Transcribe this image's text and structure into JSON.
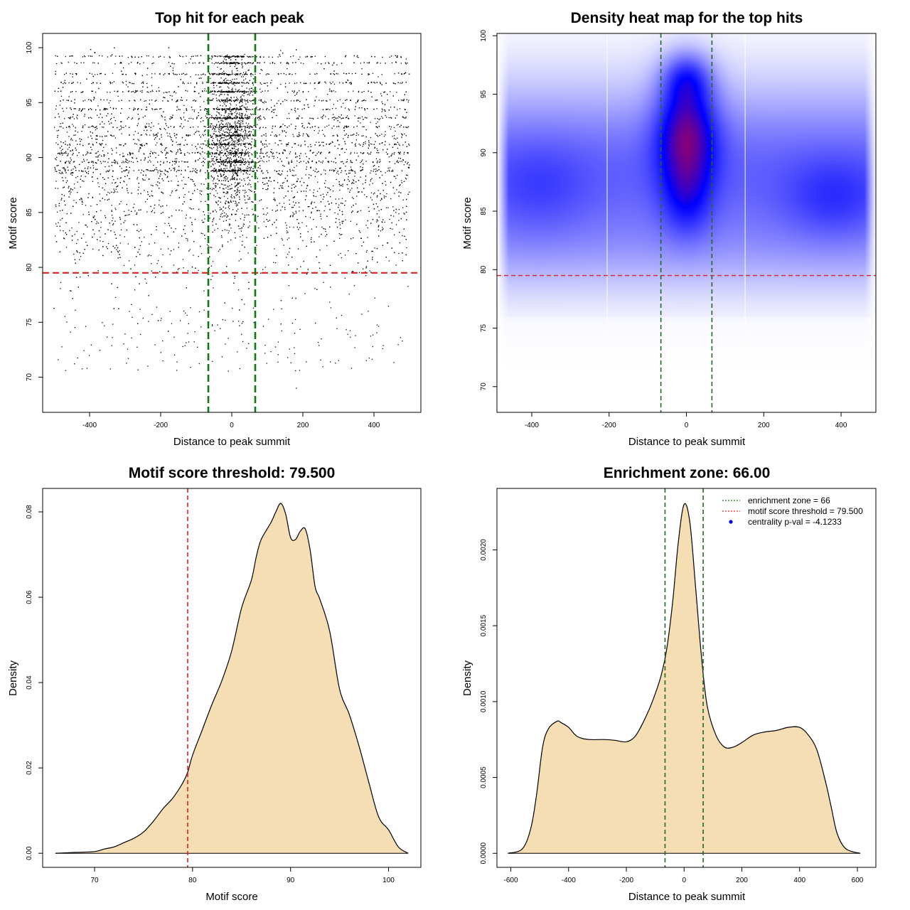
{
  "chart_data": [
    {
      "id": "scatter",
      "type": "scatter",
      "title": "Top hit for each peak",
      "xlabel": "Distance to peak summit",
      "ylabel": "Motif score",
      "xlim": [
        -532,
        532
      ],
      "ylim": [
        66.8,
        101.3
      ],
      "xticks": [
        -400,
        -200,
        0,
        200,
        400
      ],
      "yticks": [
        70,
        75,
        80,
        85,
        90,
        95,
        100
      ],
      "hlines": [
        79.5
      ],
      "vlines": [
        -66,
        66
      ],
      "points_description": "approx. 7000 top hits; distance roughly uniform on [-500,500], motif score mostly 75-100 with dense cluster near distance 0 and score 88-100",
      "point_color": "#000000",
      "threshold_color": "#dd2222",
      "zone_color": "#117711"
    },
    {
      "id": "heatmap",
      "type": "heatmap",
      "title": "Density heat map for the top hits",
      "xlabel": "Distance to peak summit",
      "ylabel": "Motif score",
      "xlim": [
        -490,
        490
      ],
      "ylim": [
        67.8,
        100.2
      ],
      "xticks": [
        -400,
        -200,
        0,
        200,
        400
      ],
      "yticks": [
        70,
        75,
        80,
        85,
        90,
        95,
        100
      ],
      "hlines": [
        79.5
      ],
      "vlines": [
        -66,
        66
      ],
      "peak": {
        "x": 0,
        "y": 91.5
      },
      "colors": {
        "low": "#ffffff",
        "mid": "#0000ff",
        "high": "#ff0000"
      }
    },
    {
      "id": "score-density",
      "type": "area",
      "title": "Motif score threshold: 79.500",
      "xlabel": "Motif score",
      "ylabel": "Density",
      "xlim": [
        64.7,
        103.3
      ],
      "ylim": [
        -0.0033,
        0.0855
      ],
      "xticks": [
        70,
        80,
        90,
        100
      ],
      "yticks": [
        0.0,
        0.02,
        0.04,
        0.06,
        0.08
      ],
      "ytick_labels": [
        "0.00",
        "0.02",
        "0.04",
        "0.06",
        "0.08"
      ],
      "vlines": [
        79.5
      ],
      "fill": "#f5deb3",
      "x": [
        66,
        68,
        70,
        71,
        72,
        73,
        74,
        75,
        76,
        77,
        78,
        79,
        79.5,
        80,
        81,
        82,
        83,
        84,
        85,
        86,
        86.5,
        87,
        88,
        88.5,
        89,
        89.5,
        90,
        90.5,
        91,
        91.5,
        92,
        92.5,
        93,
        94,
        95,
        96,
        97,
        98,
        99,
        100,
        101,
        102
      ],
      "y": [
        0.0,
        0.0002,
        0.0004,
        0.001,
        0.0015,
        0.0025,
        0.0035,
        0.005,
        0.0075,
        0.0105,
        0.013,
        0.0165,
        0.019,
        0.023,
        0.029,
        0.035,
        0.0405,
        0.0475,
        0.0575,
        0.064,
        0.0695,
        0.0735,
        0.0775,
        0.08,
        0.082,
        0.0795,
        0.074,
        0.0735,
        0.0755,
        0.076,
        0.071,
        0.0625,
        0.0595,
        0.052,
        0.0385,
        0.0325,
        0.025,
        0.0165,
        0.0085,
        0.0055,
        0.0015,
        0.0
      ]
    },
    {
      "id": "distance-density",
      "type": "area",
      "title": "Enrichment zone: 66.00",
      "xlabel": "Distance to peak summit",
      "ylabel": "Density",
      "xlim": [
        -648,
        664
      ],
      "ylim": [
        -9.25e-05,
        0.002405
      ],
      "xticks": [
        -600,
        -400,
        -200,
        0,
        200,
        400,
        600
      ],
      "yticks": [
        0.0,
        0.0005,
        0.001,
        0.0015,
        0.002
      ],
      "ytick_labels": [
        "0.0000",
        "0.0005",
        "0.0010",
        "0.0015",
        "0.0020"
      ],
      "vlines": [
        -66,
        66
      ],
      "fill": "#f5deb3",
      "x": [
        -610,
        -560,
        -530,
        -510,
        -490,
        -470,
        -440,
        -425,
        -400,
        -370,
        -330,
        -280,
        -240,
        -200,
        -170,
        -140,
        -110,
        -80,
        -60,
        -40,
        -20,
        0,
        20,
        40,
        60,
        80,
        110,
        140,
        170,
        200,
        240,
        280,
        320,
        360,
        400,
        430,
        460,
        490,
        510,
        530,
        560,
        610
      ],
      "y": [
        0.0,
        3e-05,
        0.00017,
        0.0004,
        0.0007,
        0.00082,
        0.00087,
        0.00086,
        0.00083,
        0.00077,
        0.00075,
        0.00075,
        0.000745,
        0.000735,
        0.00077,
        0.00087,
        0.001,
        0.00117,
        0.00135,
        0.00165,
        0.00205,
        0.0023,
        0.00218,
        0.00175,
        0.0013,
        0.00097,
        0.00078,
        0.0007,
        0.0007,
        0.00073,
        0.00078,
        0.0008,
        0.00081,
        0.00083,
        0.00083,
        0.00078,
        0.00068,
        0.00047,
        0.0003,
        0.00013,
        3e-05,
        0.0
      ],
      "legend": [
        {
          "label": "enrichment zone = 66",
          "style": "dotted-line",
          "color": "#117711"
        },
        {
          "label": "motif score threshold = 79.500",
          "style": "dotted-line",
          "color": "#dd2222"
        },
        {
          "label": "centrality p-val = -4.1233",
          "style": "point",
          "color": "#0000dd"
        }
      ],
      "legend_position": "top-right"
    }
  ]
}
